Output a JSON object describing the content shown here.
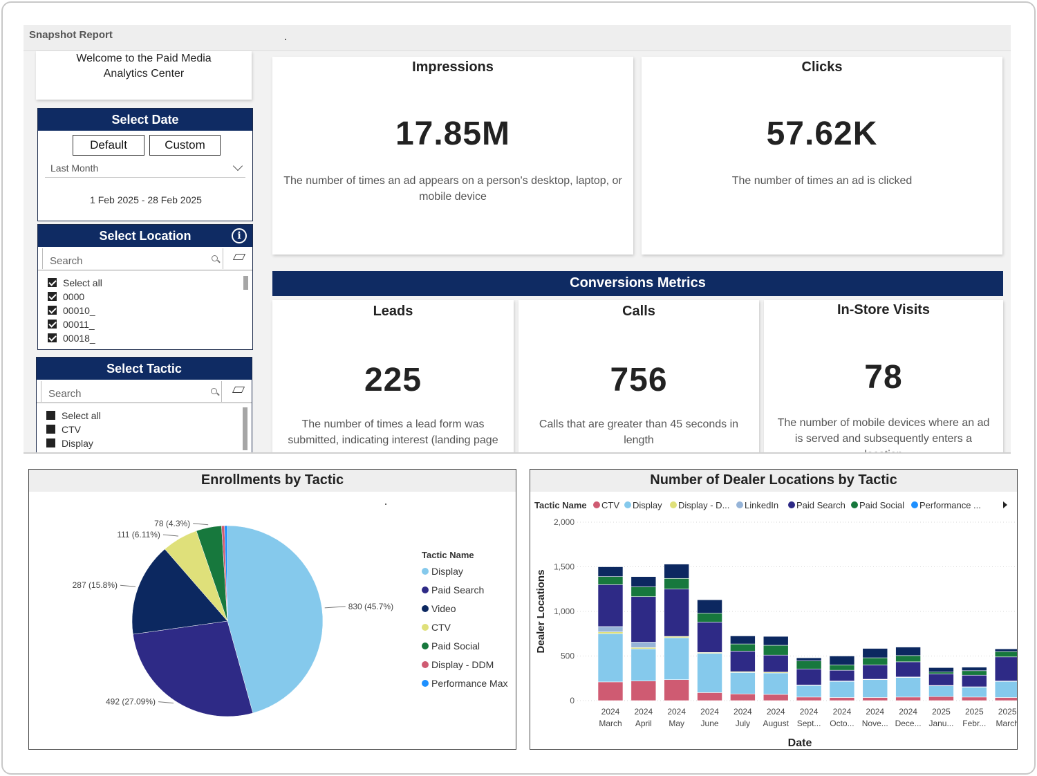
{
  "report": {
    "title": "Snapshot Report"
  },
  "welcome": {
    "line1": "Welcome to the Paid Media",
    "line2": "Analytics Center"
  },
  "date_slicer": {
    "title": "Select Date",
    "default_label": "Default",
    "custom_label": "Custom",
    "dropdown_value": "Last Month",
    "range": "1 Feb 2025 - 28 Feb 2025"
  },
  "location_slicer": {
    "title": "Select Location",
    "info_icon": "i",
    "search_placeholder": "Search",
    "items": [
      {
        "label": "Select all",
        "checked": true
      },
      {
        "label": "0000",
        "checked": true
      },
      {
        "label": "00010_",
        "checked": true
      },
      {
        "label": "00011_",
        "checked": true
      },
      {
        "label": "00018_",
        "checked": true
      }
    ]
  },
  "tactic_slicer": {
    "title": "Select Tactic",
    "search_placeholder": "Search",
    "items": [
      {
        "label": "Select all",
        "checked": false
      },
      {
        "label": "CTV",
        "checked": false
      },
      {
        "label": "Display",
        "checked": false
      }
    ]
  },
  "kpis": {
    "impressions": {
      "title": "Impressions",
      "value": "17.85M",
      "desc": "The number of times an ad appears on a person's desktop, laptop, or mobile device"
    },
    "clicks": {
      "title": "Clicks",
      "value": "57.62K",
      "desc": "The number of times an ad is clicked"
    }
  },
  "conversions": {
    "title": "Conversions Metrics",
    "leads": {
      "title": "Leads",
      "value": "225",
      "desc": "The number of times a lead form was submitted, indicating interest (landing page"
    },
    "calls": {
      "title": "Calls",
      "value": "756",
      "desc": "Calls that are greater than 45 seconds in length"
    },
    "visits": {
      "title": "In-Store Visits",
      "value": "78",
      "desc": "The number of mobile devices where an ad is served and subsequently enters a location"
    }
  },
  "colors": {
    "navy": "#0f2b63",
    "ctv": "#cf5b72",
    "display": "#85c9ec",
    "display_ddm": "#dfe07a",
    "linkedin": "#96b4d8",
    "paid_search": "#2e2a86",
    "paid_social": "#17783d",
    "performance": "#1e90ff",
    "video": "#0c2860"
  },
  "chart_data": [
    {
      "type": "pie",
      "title": "Enrollments by Tactic",
      "legend_title": "Tactic Name",
      "slices": [
        {
          "name": "Display",
          "value": 830,
          "label": "830 (45.7%)",
          "color": "#85c9ec"
        },
        {
          "name": "Paid Search",
          "value": 492,
          "label": "492 (27.09%)",
          "color": "#2e2a86"
        },
        {
          "name": "Video",
          "value": 287,
          "label": "287 (15.8%)",
          "color": "#0c2860"
        },
        {
          "name": "CTV",
          "value": 111,
          "label": "111 (6.11%)",
          "color": "#dfe07a"
        },
        {
          "name": "Paid Social",
          "value": 78,
          "label": "78 (4.3%)",
          "color": "#17783d"
        },
        {
          "name": "Display - DDM",
          "value": 9,
          "label": "",
          "color": "#cf5b72"
        },
        {
          "name": "Performance Max",
          "value": 9,
          "label": "",
          "color": "#1e90ff"
        }
      ]
    },
    {
      "type": "bar",
      "stacked": true,
      "title": "Number of Dealer Locations by Tactic",
      "legend_title": "Tactic Name",
      "legend": [
        {
          "name": "CTV",
          "color": "#cf5b72"
        },
        {
          "name": "Display",
          "color": "#85c9ec"
        },
        {
          "name": "Display - D...",
          "color": "#dfe07a"
        },
        {
          "name": "LinkedIn",
          "color": "#96b4d8"
        },
        {
          "name": "Paid Search",
          "color": "#2e2a86"
        },
        {
          "name": "Paid Social",
          "color": "#17783d"
        },
        {
          "name": "Performance ...",
          "color": "#1e90ff"
        }
      ],
      "xlabel": "Date",
      "ylabel": "Dealer Locations",
      "ylim": [
        0,
        2000
      ],
      "yticks": [
        "0",
        "500",
        "1,000",
        "1,500",
        "2,000"
      ],
      "categories": [
        [
          "2024",
          "March"
        ],
        [
          "2024",
          "April"
        ],
        [
          "2024",
          "May"
        ],
        [
          "2024",
          "June"
        ],
        [
          "2024",
          "July"
        ],
        [
          "2024",
          "August"
        ],
        [
          "2024",
          "Sept..."
        ],
        [
          "2024",
          "Octo..."
        ],
        [
          "2024",
          "Nove..."
        ],
        [
          "2024",
          "Dece..."
        ],
        [
          "2025",
          "Janu..."
        ],
        [
          "2025",
          "Febr..."
        ],
        [
          "2025",
          "March"
        ]
      ],
      "series": [
        {
          "name": "CTV",
          "color": "#cf5b72",
          "values": [
            210,
            220,
            235,
            90,
            75,
            70,
            40,
            35,
            35,
            40,
            45,
            40,
            35
          ]
        },
        {
          "name": "Display",
          "color": "#85c9ec",
          "values": [
            540,
            360,
            470,
            440,
            240,
            240,
            130,
            180,
            200,
            220,
            120,
            110,
            180
          ]
        },
        {
          "name": "Display - DDM",
          "color": "#dfe07a",
          "values": [
            20,
            15,
            15,
            10,
            10,
            10,
            5,
            5,
            5,
            5,
            5,
            5,
            5
          ]
        },
        {
          "name": "LinkedIn",
          "color": "#96b4d8",
          "values": [
            60,
            60,
            0,
            0,
            0,
            0,
            0,
            0,
            0,
            0,
            0,
            0,
            0
          ]
        },
        {
          "name": "Paid Search",
          "color": "#2e2a86",
          "values": [
            470,
            510,
            530,
            340,
            230,
            190,
            180,
            120,
            160,
            170,
            130,
            130,
            270
          ]
        },
        {
          "name": "Paid Social",
          "color": "#17783d",
          "values": [
            90,
            110,
            120,
            100,
            80,
            110,
            90,
            60,
            80,
            70,
            20,
            50,
            60
          ]
        },
        {
          "name": "Performance Max",
          "color": "#1e90ff",
          "values": [
            0,
            0,
            0,
            0,
            0,
            0,
            0,
            0,
            0,
            0,
            0,
            0,
            0
          ]
        },
        {
          "name": "Video",
          "color": "#0c2860",
          "values": [
            110,
            115,
            160,
            150,
            90,
            100,
            35,
            100,
            105,
            95,
            50,
            40,
            30
          ]
        }
      ]
    }
  ]
}
